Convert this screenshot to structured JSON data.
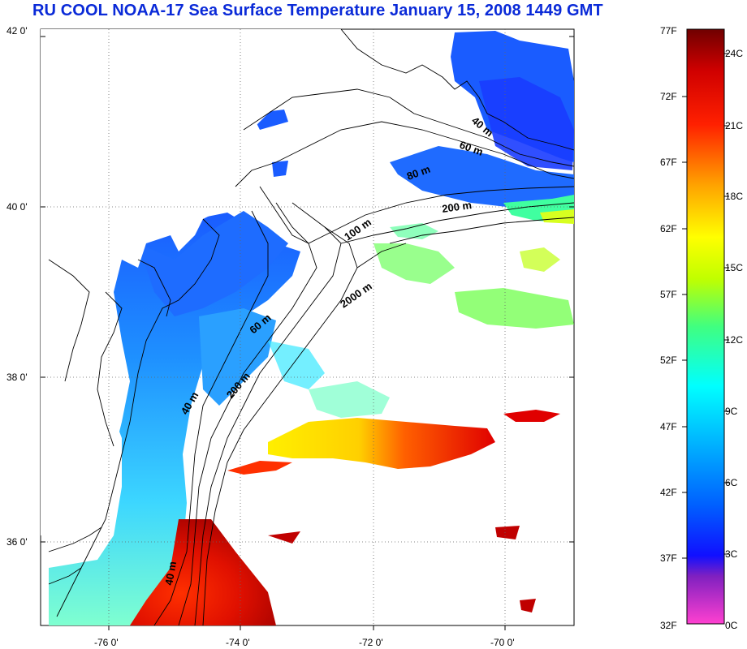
{
  "title": "RU COOL  NOAA-17 Sea Surface Temperature January 15, 2008 1449 GMT",
  "map": {
    "lat_labels": [
      "42 0'",
      "40 0'",
      "38 0'",
      "36 0'"
    ],
    "lon_labels": [
      "-76 0'",
      "-74 0'",
      "-72 0'",
      "-70 0'"
    ],
    "isobath_labels": [
      "40 m",
      "60 m",
      "80 m",
      "200 m",
      "100 m",
      "2000 m",
      "60 m",
      "200 m",
      "40 m",
      "40 m"
    ]
  },
  "colorbar": {
    "fahrenheit_labels": [
      "77F",
      "72F",
      "67F",
      "62F",
      "57F",
      "52F",
      "47F",
      "42F",
      "37F",
      "32F"
    ],
    "celsius_labels": [
      "24C",
      "21C",
      "18C",
      "15C",
      "12C",
      "9C",
      "6C",
      "3C",
      "0C"
    ],
    "colors": [
      "#ff40d0",
      "#8020c0",
      "#1010ff",
      "#00a0ff",
      "#00ffff",
      "#40ff80",
      "#c0ff00",
      "#ffff00",
      "#ffa000",
      "#ff2000",
      "#e00000",
      "#800000"
    ]
  }
}
